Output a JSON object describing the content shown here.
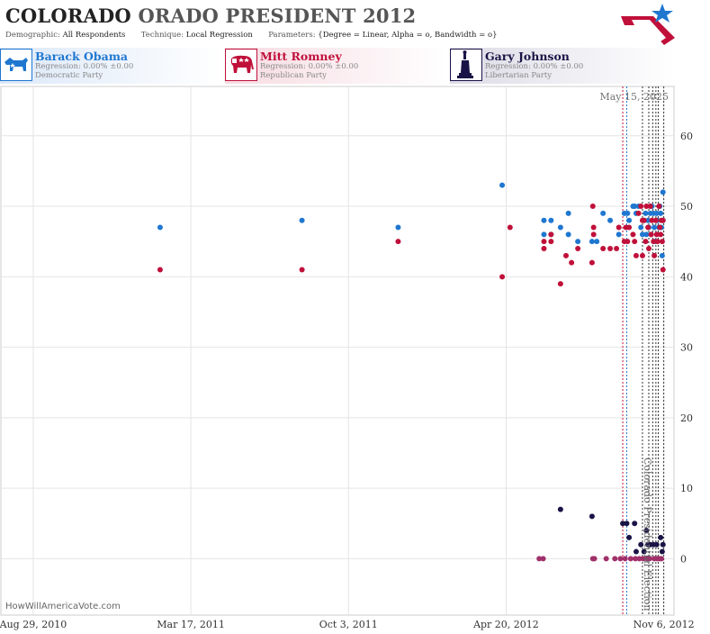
{
  "header": {
    "title_state": "COLORADO",
    "title_rest": "ORADO PRESIDENT 2012",
    "demographic_label": "Demographic:",
    "demographic_value": "All Respondents",
    "technique_label": "Technique:",
    "technique_value": "Local Regression",
    "parameters_label": "Parameters:",
    "parameters_value": "{Degree = Linear, Alpha = o, Bandwidth = o}"
  },
  "candidates": [
    {
      "name": "Barack Obama",
      "regression": "Regression: 0.00% ±0.00",
      "party": "Democratic Party",
      "color": "#1f77d0",
      "icon": "donkey-icon"
    },
    {
      "name": "Mitt Romney",
      "regression": "Regression: 0.00% ±0.00",
      "party": "Republican Party",
      "color": "#c0103a",
      "icon": "elephant-icon"
    },
    {
      "name": "Gary Johnson",
      "regression": "Regression: 0.00% ±0.00",
      "party": "Libertarian Party",
      "color": "#1a1446",
      "icon": "statue-of-liberty-icon"
    }
  ],
  "chart_data": {
    "type": "scatter",
    "title": "COLORADO ORADO PRESIDENT 2012",
    "date_stamp": "May 15, 2025",
    "election_label": "Colorado Presidential Election",
    "x_domain": [
      "2010-07-19",
      "2012-11-19"
    ],
    "x_ticks": [
      {
        "date": "2010-08-29",
        "label": "Aug 29, 2010"
      },
      {
        "date": "2011-03-17",
        "label": "Mar 17, 2011"
      },
      {
        "date": "2011-10-03",
        "label": "Oct 3, 2011"
      },
      {
        "date": "2012-04-20",
        "label": "Apr 20, 2012"
      },
      {
        "date": "2012-11-06",
        "label": "Nov 6, 2012"
      }
    ],
    "x_grid_dates": [
      "2010-08-29",
      "2011-03-17",
      "2011-10-03",
      "2012-04-20",
      "2012-11-06"
    ],
    "ylim": [
      -8,
      67
    ],
    "y_ticks": [
      0,
      10,
      20,
      30,
      40,
      50,
      60
    ],
    "grid": true,
    "vlines": [
      {
        "date": "2012-09-15",
        "color": "#c0103a"
      },
      {
        "date": "2012-09-20",
        "color": "#1f77d0"
      },
      {
        "date": "2012-10-10",
        "color": "#333333"
      },
      {
        "date": "2012-10-18",
        "color": "#333333"
      },
      {
        "date": "2012-10-23",
        "color": "#333333"
      },
      {
        "date": "2012-10-27",
        "color": "#333333"
      },
      {
        "date": "2012-10-30",
        "color": "#333333"
      },
      {
        "date": "2012-11-06",
        "color": "#333333"
      }
    ],
    "series": [
      {
        "name": "Barack Obama",
        "color": "#1f77d0",
        "points": [
          [
            "2011-02-06",
            47
          ],
          [
            "2011-08-05",
            48
          ],
          [
            "2011-12-05",
            47
          ],
          [
            "2012-04-15",
            53
          ],
          [
            "2012-06-07",
            48
          ],
          [
            "2012-06-07",
            46
          ],
          [
            "2012-06-16",
            48
          ],
          [
            "2012-06-16",
            46
          ],
          [
            "2012-06-28",
            47
          ],
          [
            "2012-07-08",
            46
          ],
          [
            "2012-07-08",
            49
          ],
          [
            "2012-07-20",
            45
          ],
          [
            "2012-08-07",
            45
          ],
          [
            "2012-08-13",
            45
          ],
          [
            "2012-08-21",
            49
          ],
          [
            "2012-08-30",
            48
          ],
          [
            "2012-09-10",
            46
          ],
          [
            "2012-09-17",
            49
          ],
          [
            "2012-09-21",
            49
          ],
          [
            "2012-09-23",
            48
          ],
          [
            "2012-09-28",
            50
          ],
          [
            "2012-09-30",
            50
          ],
          [
            "2012-10-02",
            49
          ],
          [
            "2012-10-05",
            50
          ],
          [
            "2012-10-08",
            47
          ],
          [
            "2012-10-10",
            46
          ],
          [
            "2012-10-12",
            48
          ],
          [
            "2012-10-14",
            49
          ],
          [
            "2012-10-15",
            46
          ],
          [
            "2012-10-17",
            48
          ],
          [
            "2012-10-18",
            47
          ],
          [
            "2012-10-20",
            49
          ],
          [
            "2012-10-21",
            46
          ],
          [
            "2012-10-22",
            50
          ],
          [
            "2012-10-24",
            49
          ],
          [
            "2012-10-25",
            47
          ],
          [
            "2012-10-26",
            45
          ],
          [
            "2012-10-28",
            49
          ],
          [
            "2012-10-29",
            48
          ],
          [
            "2012-10-31",
            47
          ],
          [
            "2012-11-01",
            50
          ],
          [
            "2012-11-02",
            49
          ],
          [
            "2012-11-03",
            47
          ],
          [
            "2012-11-04",
            43
          ],
          [
            "2012-11-05",
            52
          ],
          [
            "2012-11-05",
            48
          ]
        ]
      },
      {
        "name": "Mitt Romney",
        "color": "#c0103a",
        "points": [
          [
            "2011-02-06",
            41
          ],
          [
            "2011-08-05",
            41
          ],
          [
            "2011-12-05",
            45
          ],
          [
            "2012-04-15",
            40
          ],
          [
            "2012-04-25",
            47
          ],
          [
            "2012-06-07",
            45
          ],
          [
            "2012-06-07",
            44
          ],
          [
            "2012-06-16",
            46
          ],
          [
            "2012-06-16",
            45
          ],
          [
            "2012-06-28",
            39
          ],
          [
            "2012-07-05",
            43
          ],
          [
            "2012-07-12",
            42
          ],
          [
            "2012-07-20",
            44
          ],
          [
            "2012-08-07",
            42
          ],
          [
            "2012-08-08",
            50
          ],
          [
            "2012-08-09",
            47
          ],
          [
            "2012-08-09",
            46
          ],
          [
            "2012-08-21",
            44
          ],
          [
            "2012-08-30",
            44
          ],
          [
            "2012-09-07",
            44
          ],
          [
            "2012-09-10",
            47
          ],
          [
            "2012-09-17",
            45
          ],
          [
            "2012-09-19",
            47
          ],
          [
            "2012-09-21",
            45
          ],
          [
            "2012-09-23",
            47
          ],
          [
            "2012-09-28",
            46
          ],
          [
            "2012-09-30",
            45
          ],
          [
            "2012-10-02",
            43
          ],
          [
            "2012-10-05",
            49
          ],
          [
            "2012-10-08",
            50
          ],
          [
            "2012-10-10",
            48
          ],
          [
            "2012-10-10",
            43
          ],
          [
            "2012-10-12",
            48
          ],
          [
            "2012-10-14",
            45
          ],
          [
            "2012-10-15",
            50
          ],
          [
            "2012-10-17",
            47
          ],
          [
            "2012-10-18",
            44
          ],
          [
            "2012-10-20",
            50
          ],
          [
            "2012-10-21",
            46
          ],
          [
            "2012-10-22",
            48
          ],
          [
            "2012-10-24",
            45
          ],
          [
            "2012-10-25",
            43
          ],
          [
            "2012-10-27",
            48
          ],
          [
            "2012-10-28",
            46
          ],
          [
            "2012-10-29",
            45
          ],
          [
            "2012-10-31",
            50
          ],
          [
            "2012-11-01",
            47
          ],
          [
            "2012-11-02",
            46
          ],
          [
            "2012-11-03",
            48
          ],
          [
            "2012-11-04",
            45
          ],
          [
            "2012-11-05",
            48
          ],
          [
            "2012-11-05",
            41
          ]
        ]
      },
      {
        "name": "Gary Johnson",
        "color": "#1a1446",
        "points": [
          [
            "2012-06-28",
            7
          ],
          [
            "2012-08-07",
            6
          ],
          [
            "2012-09-15",
            5
          ],
          [
            "2012-09-20",
            5
          ],
          [
            "2012-09-23",
            3
          ],
          [
            "2012-09-30",
            5
          ],
          [
            "2012-10-02",
            1
          ],
          [
            "2012-10-08",
            2
          ],
          [
            "2012-10-12",
            1
          ],
          [
            "2012-10-15",
            4
          ],
          [
            "2012-10-17",
            2
          ],
          [
            "2012-10-20",
            2
          ],
          [
            "2012-10-24",
            2
          ],
          [
            "2012-10-28",
            2
          ],
          [
            "2012-11-02",
            3
          ],
          [
            "2012-11-04",
            1
          ],
          [
            "2012-11-05",
            2
          ]
        ]
      },
      {
        "name": "Zero values",
        "color": "#a0306a",
        "points": [
          [
            "2012-06-01",
            0
          ],
          [
            "2012-06-06",
            0
          ],
          [
            "2012-08-08",
            0
          ],
          [
            "2012-08-10",
            0
          ],
          [
            "2012-08-25",
            0
          ],
          [
            "2012-09-05",
            0
          ],
          [
            "2012-09-12",
            0
          ],
          [
            "2012-09-18",
            0
          ],
          [
            "2012-09-25",
            0
          ],
          [
            "2012-10-01",
            0
          ],
          [
            "2012-10-06",
            0
          ],
          [
            "2012-10-11",
            0
          ],
          [
            "2012-10-16",
            0
          ],
          [
            "2012-10-19",
            0
          ],
          [
            "2012-10-25",
            0
          ],
          [
            "2012-10-29",
            0
          ],
          [
            "2012-11-01",
            0
          ],
          [
            "2012-11-03",
            0
          ]
        ]
      }
    ]
  },
  "footer": {
    "site": "HowWillAmericaVote.com"
  }
}
